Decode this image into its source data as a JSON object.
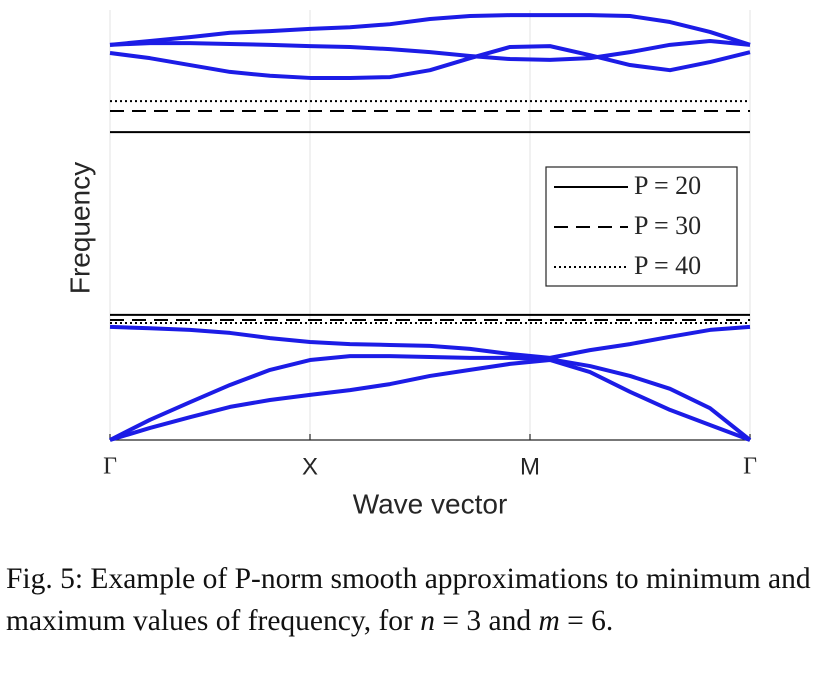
{
  "chart_data": {
    "type": "line",
    "xlabel": "Wave vector",
    "ylabel": "Frequency",
    "x": [
      0,
      0.2,
      0.4,
      0.6,
      0.8,
      1.0,
      1.2,
      1.4,
      1.6,
      1.8,
      2.0,
      2.2,
      2.4,
      2.6,
      2.8,
      3.0,
      3.2
    ],
    "xlim": [
      0,
      3.2
    ],
    "xticks": [
      {
        "value": 0,
        "label": "Γ"
      },
      {
        "value": 1,
        "label": "X"
      },
      {
        "value": 2.1,
        "label": "M"
      },
      {
        "value": 3.2,
        "label": "Γ"
      }
    ],
    "ylim": [
      0,
      100
    ],
    "grid": true,
    "bands": [
      {
        "color": "#1c1ce6",
        "values": [
          0,
          2.8,
          5.3,
          7.7,
          9.3,
          10.5,
          11.6,
          13.0,
          14.9,
          16.3,
          17.7,
          18.6,
          15.8,
          11.2,
          7.0,
          3.5,
          0
        ]
      },
      {
        "color": "#1c1ce6",
        "values": [
          0,
          4.7,
          8.8,
          12.8,
          16.3,
          18.6,
          19.5,
          19.5,
          19.3,
          19.1,
          19.1,
          18.8,
          17.2,
          14.9,
          11.9,
          7.4,
          0
        ]
      },
      {
        "color": "#1c1ce6",
        "values": [
          26.3,
          26.0,
          25.6,
          24.9,
          23.7,
          22.8,
          22.3,
          22.1,
          21.9,
          21.2,
          20.0,
          19.1,
          20.9,
          22.3,
          24.0,
          25.6,
          26.3
        ]
      },
      {
        "color": "#1c1ce6",
        "values": [
          90.0,
          88.8,
          87.2,
          85.6,
          84.7,
          84.2,
          84.2,
          84.4,
          86.0,
          88.8,
          91.4,
          91.6,
          89.5,
          87.2,
          86.0,
          87.9,
          90.2
        ]
      },
      {
        "color": "#1c1ce6",
        "values": [
          91.9,
          92.3,
          92.3,
          92.1,
          91.9,
          91.6,
          91.4,
          90.9,
          90.2,
          89.3,
          88.6,
          88.4,
          88.8,
          90.2,
          91.9,
          92.8,
          91.9
        ]
      },
      {
        "color": "#1c1ce6",
        "values": [
          91.9,
          92.8,
          93.7,
          94.7,
          95.1,
          95.6,
          96.0,
          96.7,
          97.9,
          98.6,
          98.8,
          98.8,
          98.8,
          98.6,
          97.2,
          94.9,
          91.9
        ]
      }
    ],
    "levels": [
      {
        "name": "P = 20",
        "style": "solid",
        "color": "#000000",
        "values": [
          29.1,
          71.6
        ]
      },
      {
        "name": "P = 30",
        "style": "dashed",
        "color": "#000000",
        "values": [
          27.9,
          76.5
        ]
      },
      {
        "name": "P = 40",
        "style": "dotted",
        "color": "#000000",
        "values": [
          27.2,
          78.8
        ]
      }
    ],
    "legend": "right"
  },
  "caption": [
    "Fig. 5: Example of P-norm smooth approximations to minimum and maximum values of frequency, for ",
    "n",
    " = 3 and ",
    "m",
    " = 6."
  ]
}
